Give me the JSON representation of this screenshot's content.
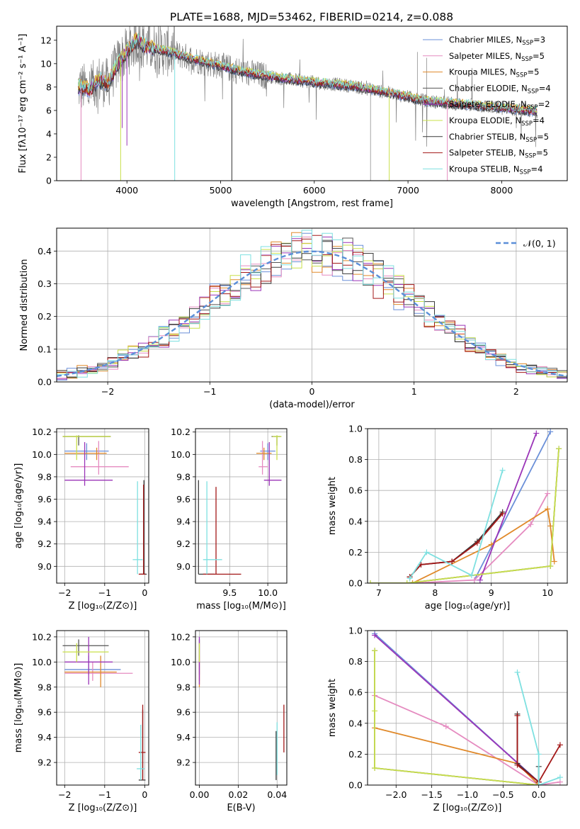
{
  "figure_title": "PLATE=1688, MJD=53462, FIBERID=0214, z=0.088",
  "colors": {
    "chab_miles": "#6a8fd8",
    "salp_miles": "#e58bc0",
    "krou_miles": "#e0892a",
    "chab_elodie": "#555555",
    "salp_elodie": "#9b35b8",
    "krou_elodie": "#c9e04a",
    "chab_stelib": "#3a3a3a",
    "salp_stelib": "#a31818",
    "krou_stelib": "#7ee0e0",
    "data": "#808080",
    "normal": "#5b8fd8",
    "grid": "#b0b0b0"
  },
  "legend": [
    {
      "key": "chab_miles",
      "label": "Chabrier MILES, N",
      "n": "3"
    },
    {
      "key": "salp_miles",
      "label": "Salpeter MILES, N",
      "n": "5"
    },
    {
      "key": "krou_miles",
      "label": "Kroupa MILES, N",
      "n": "5"
    },
    {
      "key": "chab_elodie",
      "label": "Chabrier ELODIE, N",
      "n": "4"
    },
    {
      "key": "salp_elodie",
      "label": "Salpeter ELODIE, N",
      "n": "2"
    },
    {
      "key": "krou_elodie",
      "label": "Kroupa ELODIE, N",
      "n": "4"
    },
    {
      "key": "chab_stelib",
      "label": "Chabrier STELIB, N",
      "n": "5"
    },
    {
      "key": "salp_stelib",
      "label": "Salpeter STELIB, N",
      "n": "5"
    },
    {
      "key": "krou_stelib",
      "label": "Kroupa STELIB, N",
      "n": "4"
    }
  ],
  "legend_sub": "SSP",
  "chart_data": [
    {
      "id": "spectrum",
      "type": "line",
      "xlabel": "wavelength [Angstrom, rest frame]",
      "ylabel": "Flux [fλ10⁻¹⁷ erg cm⁻² s⁻¹ A⁻¹]",
      "xlim": [
        3250,
        8700
      ],
      "ylim": [
        0,
        13.2
      ],
      "xticks": [
        4000,
        5000,
        6000,
        7000,
        8000
      ],
      "yticks": [
        0,
        2,
        4,
        6,
        8,
        10,
        12
      ],
      "continuum": {
        "x": [
          3500,
          3600,
          3700,
          3800,
          3900,
          4000,
          4100,
          4200,
          4300,
          4500,
          4700,
          5000,
          5300,
          5600,
          6000,
          6400,
          6800,
          7200,
          7600,
          8000,
          8400
        ],
        "y": [
          8.0,
          7.8,
          8.6,
          8.3,
          10.0,
          11.0,
          12.0,
          11.5,
          11.3,
          10.9,
          10.4,
          9.8,
          9.2,
          8.8,
          8.4,
          8.1,
          7.5,
          6.8,
          6.5,
          6.2,
          5.9
        ]
      }
    },
    {
      "id": "residuals",
      "type": "line",
      "xlabel": "(data-model)/error",
      "ylabel": "Normed distribution",
      "xlim": [
        -2.5,
        2.5
      ],
      "ylim": [
        0,
        0.47
      ],
      "xticks": [
        -2,
        -1,
        0,
        1,
        2
      ],
      "yticks": [
        0.0,
        0.1,
        0.2,
        0.3,
        0.4
      ],
      "legend": "𝒩(0, 1)",
      "bin_width": 0.1
    },
    {
      "id": "z_age",
      "type": "scatter",
      "xlabel": "Z [log₁₀(Z/Z⊙)]",
      "ylabel": "age  [log₁₀(age/yr)]",
      "xlim": [
        -2.2,
        0.1
      ],
      "ylim": [
        8.85,
        10.23
      ],
      "xticks": [
        -2,
        -1,
        0
      ],
      "yticks": [
        9.0,
        9.2,
        9.4,
        9.6,
        9.8,
        10.0,
        10.2
      ],
      "points": [
        {
          "k": "chab_miles",
          "x": -1.45,
          "y": 10.03,
          "xe": [
            -2.0,
            -0.9
          ],
          "ye": [
            9.95,
            10.1
          ]
        },
        {
          "k": "salp_miles",
          "x": -1.15,
          "y": 9.89,
          "xe": [
            -1.85,
            -0.4
          ],
          "ye": [
            9.82,
            10.12
          ]
        },
        {
          "k": "krou_miles",
          "x": -1.2,
          "y": 10.01,
          "xe": [
            -2.0,
            -0.95
          ],
          "ye": [
            9.95,
            10.06
          ]
        },
        {
          "k": "chab_elodie",
          "x": -1.65,
          "y": 10.16,
          "xe": [
            -2.05,
            -0.85
          ],
          "ye": [
            10.08,
            10.17
          ]
        },
        {
          "k": "salp_elodie",
          "x": -1.5,
          "y": 9.77,
          "xe": [
            -2.0,
            -0.8
          ],
          "ye": [
            9.72,
            10.11
          ]
        },
        {
          "k": "krou_elodie",
          "x": -1.7,
          "y": 10.16,
          "xe": [
            -2.05,
            -0.85
          ],
          "ye": [
            9.95,
            10.17
          ]
        },
        {
          "k": "chab_stelib",
          "x": -0.02,
          "y": 8.93,
          "xe": [
            -0.12,
            0.05
          ],
          "ye": [
            8.93,
            9.77
          ]
        },
        {
          "k": "salp_stelib",
          "x": -0.03,
          "y": 8.93,
          "xe": [
            -0.15,
            0.02
          ],
          "ye": [
            8.93,
            9.73
          ]
        },
        {
          "k": "krou_stelib",
          "x": -0.18,
          "y": 9.06,
          "xe": [
            -0.3,
            -0.05
          ],
          "ye": [
            8.93,
            9.76
          ]
        }
      ]
    },
    {
      "id": "mass_age",
      "type": "scatter",
      "xlabel": "mass [log₁₀(M/M⊙)]",
      "ylabel": "",
      "xlim": [
        9.05,
        10.25
      ],
      "ylim": [
        8.85,
        10.23
      ],
      "xticks": [
        9.5,
        10.0
      ],
      "yticks": [
        9.0,
        9.2,
        9.4,
        9.6,
        9.8,
        10.0,
        10.2
      ],
      "points": [
        {
          "k": "chab_miles",
          "x": 10.0,
          "y": 10.03,
          "xe": [
            9.9,
            10.1
          ],
          "ye": [
            9.95,
            10.1
          ]
        },
        {
          "k": "salp_miles",
          "x": 9.93,
          "y": 9.89,
          "xe": [
            9.88,
            10.0
          ],
          "ye": [
            9.82,
            10.12
          ]
        },
        {
          "k": "krou_miles",
          "x": 9.95,
          "y": 10.01,
          "xe": [
            9.85,
            10.05
          ],
          "ye": [
            9.95,
            10.06
          ]
        },
        {
          "k": "chab_elodie",
          "x": 10.12,
          "y": 10.16,
          "xe": [
            10.05,
            10.17
          ],
          "ye": [
            10.08,
            10.17
          ]
        },
        {
          "k": "salp_elodie",
          "x": 10.02,
          "y": 9.77,
          "xe": [
            9.95,
            10.18
          ],
          "ye": [
            9.72,
            10.11
          ]
        },
        {
          "k": "krou_elodie",
          "x": 10.12,
          "y": 10.16,
          "xe": [
            10.06,
            10.18
          ],
          "ye": [
            9.95,
            10.17
          ]
        },
        {
          "k": "chab_stelib",
          "x": 9.09,
          "y": 8.93,
          "xe": [
            9.09,
            9.3
          ],
          "ye": [
            8.93,
            9.77
          ]
        },
        {
          "k": "salp_stelib",
          "x": 9.32,
          "y": 8.93,
          "xe": [
            9.15,
            9.65
          ],
          "ye": [
            8.93,
            9.71
          ]
        },
        {
          "k": "krou_stelib",
          "x": 9.2,
          "y": 9.06,
          "xe": [
            9.15,
            9.4
          ],
          "ye": [
            8.93,
            9.76
          ]
        }
      ]
    },
    {
      "id": "age_weight",
      "type": "line",
      "xlabel": "age  [log₁₀(age/yr)]",
      "ylabel": "mass weight",
      "xlim": [
        6.8,
        10.35
      ],
      "ylim": [
        0,
        1.0
      ],
      "xticks": [
        7,
        8,
        9,
        10
      ],
      "yticks": [
        0.0,
        0.2,
        0.4,
        0.6,
        0.8,
        1.0
      ],
      "series": [
        {
          "k": "chab_miles",
          "x": [
            8.7,
            10.05
          ],
          "y": [
            0.02,
            0.98
          ]
        },
        {
          "k": "salp_miles",
          "x": [
            7.6,
            8.7,
            9.7,
            10.0
          ],
          "y": [
            0.0,
            0.02,
            0.38,
            0.58
          ]
        },
        {
          "k": "krou_miles",
          "x": [
            7.6,
            9.0,
            10.0,
            10.05,
            10.12
          ],
          "y": [
            0.0,
            0.25,
            0.48,
            0.37,
            0.14
          ]
        },
        {
          "k": "chab_elodie",
          "x": [
            6.85,
            7.5,
            10.05,
            10.2
          ],
          "y": [
            0.0,
            0.0,
            0.11,
            0.87
          ]
        },
        {
          "k": "salp_elodie",
          "x": [
            8.8,
            9.8
          ],
          "y": [
            0.02,
            0.97
          ]
        },
        {
          "k": "krou_elodie",
          "x": [
            6.85,
            7.5,
            10.05,
            10.2
          ],
          "y": [
            0.0,
            0.0,
            0.11,
            0.87
          ]
        },
        {
          "k": "chab_stelib",
          "x": [
            7.55,
            7.75,
            8.3,
            8.75,
            9.2
          ],
          "y": [
            0.04,
            0.12,
            0.14,
            0.27,
            0.46
          ]
        },
        {
          "k": "salp_stelib",
          "x": [
            7.55,
            7.75,
            8.3,
            8.75,
            9.2
          ],
          "y": [
            0.04,
            0.12,
            0.14,
            0.26,
            0.45
          ]
        },
        {
          "k": "krou_stelib",
          "x": [
            7.55,
            7.85,
            8.65,
            9.2
          ],
          "y": [
            0.03,
            0.2,
            0.05,
            0.73
          ]
        }
      ]
    },
    {
      "id": "z_mass",
      "type": "scatter",
      "xlabel": "Z [log₁₀(Z/Z⊙)]",
      "ylabel": "mass [log₁₀(M/M⊙)]",
      "xlim": [
        -2.2,
        0.1
      ],
      "ylim": [
        9.02,
        10.25
      ],
      "xticks": [
        -2,
        -1,
        0
      ],
      "yticks": [
        9.2,
        9.4,
        9.6,
        9.8,
        10.0,
        10.2
      ],
      "points": [
        {
          "k": "chab_miles",
          "x": -1.4,
          "y": 9.94,
          "xe": [
            -2.0,
            -0.6
          ],
          "ye": [
            9.9,
            10.05
          ]
        },
        {
          "k": "salp_miles",
          "x": -1.3,
          "y": 9.91,
          "xe": [
            -2.0,
            -0.3
          ],
          "ye": [
            9.85,
            10.0
          ]
        },
        {
          "k": "krou_miles",
          "x": -1.1,
          "y": 9.92,
          "xe": [
            -2.0,
            -0.7
          ],
          "ye": [
            9.8,
            10.05
          ]
        },
        {
          "k": "chab_elodie",
          "x": -1.65,
          "y": 10.13,
          "xe": [
            -2.05,
            -0.9
          ],
          "ye": [
            10.05,
            10.18
          ]
        },
        {
          "k": "salp_elodie",
          "x": -1.4,
          "y": 10.0,
          "xe": [
            -2.0,
            -0.8
          ],
          "ye": [
            9.82,
            10.2
          ]
        },
        {
          "k": "krou_elodie",
          "x": -1.7,
          "y": 10.08,
          "xe": [
            -2.05,
            -0.9
          ],
          "ye": [
            10.0,
            10.15
          ]
        },
        {
          "k": "chab_stelib",
          "x": -0.05,
          "y": 9.06,
          "xe": [
            -0.15,
            0.02
          ],
          "ye": [
            9.06,
            9.62
          ]
        },
        {
          "k": "salp_stelib",
          "x": -0.05,
          "y": 9.28,
          "xe": [
            -0.15,
            0.02
          ],
          "ye": [
            9.06,
            9.66
          ]
        },
        {
          "k": "krou_stelib",
          "x": -0.1,
          "y": 9.15,
          "xe": [
            -0.2,
            0.0
          ],
          "ye": [
            9.06,
            9.5
          ]
        }
      ]
    },
    {
      "id": "ebv_mass",
      "type": "scatter",
      "xlabel": "E(B-V)",
      "ylabel": "",
      "xlim": [
        -0.002,
        0.045
      ],
      "ylim": [
        9.02,
        10.25
      ],
      "xticks": [
        0.0,
        0.02,
        0.04
      ],
      "yticks": [
        9.2,
        9.4,
        9.6,
        9.8,
        10.0,
        10.2
      ],
      "points": [
        {
          "k": "chab_miles",
          "x": 0.0,
          "y": 9.94,
          "xe": [
            0.0,
            0.0
          ],
          "ye": [
            9.9,
            10.05
          ]
        },
        {
          "k": "salp_miles",
          "x": 0.0,
          "y": 9.91,
          "xe": [
            0.0,
            0.0
          ],
          "ye": [
            9.85,
            10.0
          ]
        },
        {
          "k": "krou_miles",
          "x": 0.0,
          "y": 9.92,
          "xe": [
            0.0,
            0.0
          ],
          "ye": [
            9.8,
            10.05
          ]
        },
        {
          "k": "chab_elodie",
          "x": 0.0,
          "y": 10.13,
          "xe": [
            0.0,
            0.0
          ],
          "ye": [
            10.05,
            10.18
          ]
        },
        {
          "k": "salp_elodie",
          "x": 0.0,
          "y": 10.0,
          "xe": [
            0.0,
            0.0
          ],
          "ye": [
            9.82,
            10.2
          ]
        },
        {
          "k": "krou_elodie",
          "x": 0.0,
          "y": 10.08,
          "xe": [
            0.0,
            0.0
          ],
          "ye": [
            10.0,
            10.15
          ]
        },
        {
          "k": "chab_stelib",
          "x": 0.0395,
          "y": 9.2,
          "xe": [
            0.0395,
            0.0395
          ],
          "ye": [
            9.06,
            9.45
          ]
        },
        {
          "k": "salp_stelib",
          "x": 0.0435,
          "y": 9.45,
          "xe": [
            0.0435,
            0.0435
          ],
          "ye": [
            9.28,
            9.66
          ]
        },
        {
          "k": "krou_stelib",
          "x": 0.04,
          "y": 9.3,
          "xe": [
            0.04,
            0.04
          ],
          "ye": [
            9.1,
            9.52
          ]
        }
      ]
    },
    {
      "id": "z_weight",
      "type": "line",
      "xlabel": "Z [log₁₀(Z/Z⊙)]",
      "ylabel": "mass weight",
      "xlim": [
        -2.4,
        0.4
      ],
      "ylim": [
        0,
        1.0
      ],
      "xticks": [
        -2.0,
        -1.5,
        -1.0,
        -0.5,
        0.0
      ],
      "yticks": [
        0.0,
        0.2,
        0.4,
        0.6,
        0.8,
        1.0
      ],
      "series": [
        {
          "k": "chab_miles",
          "x": [
            -2.3,
            0.0
          ],
          "y": [
            0.98,
            0.02
          ]
        },
        {
          "k": "salp_miles",
          "x": [
            -2.3,
            -1.3,
            0.0,
            0.3
          ],
          "y": [
            0.58,
            0.38,
            0.0,
            0.02
          ]
        },
        {
          "k": "krou_miles",
          "x": [
            -2.3,
            -0.3,
            0.0
          ],
          "y": [
            0.37,
            0.14,
            0.0
          ]
        },
        {
          "k": "chab_elodie",
          "x": [
            -2.3,
            -2.3,
            0.0,
            0.0
          ],
          "y": [
            0.87,
            0.11,
            0.0,
            0.0
          ]
        },
        {
          "k": "salp_elodie",
          "x": [
            -2.3,
            0.0
          ],
          "y": [
            0.97,
            0.02
          ]
        },
        {
          "k": "krou_elodie",
          "x": [
            -2.3,
            -2.3,
            -2.3,
            0.0
          ],
          "y": [
            0.87,
            0.48,
            0.11,
            0.0
          ]
        },
        {
          "k": "chab_stelib",
          "x": [
            -0.3,
            -0.3,
            0.0,
            0.0
          ],
          "y": [
            0.46,
            0.14,
            0.02,
            0.12
          ]
        },
        {
          "k": "salp_stelib",
          "x": [
            -0.3,
            -0.3,
            0.0,
            0.3
          ],
          "y": [
            0.45,
            0.13,
            0.02,
            0.26
          ]
        },
        {
          "k": "krou_stelib",
          "x": [
            -0.3,
            0.0,
            0.0,
            0.3
          ],
          "y": [
            0.73,
            0.2,
            0.0,
            0.05
          ]
        }
      ]
    }
  ]
}
